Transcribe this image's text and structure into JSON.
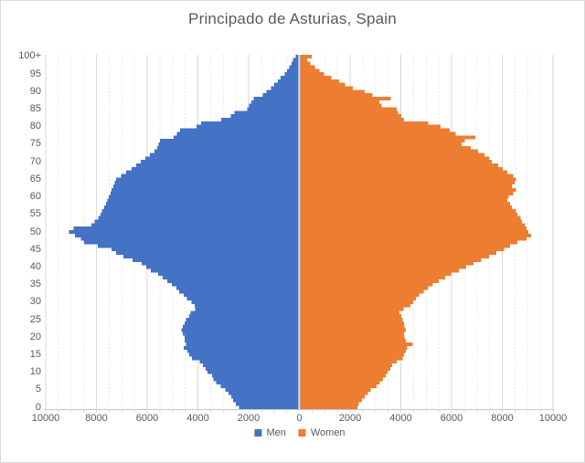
{
  "title": "Principado de Asturias, Spain",
  "legend": {
    "men": "Men",
    "women": "Women"
  },
  "colors": {
    "men": "#4472C4",
    "women": "#ED7D31",
    "grid_major": "#D9D9D9",
    "grid_minor": "#E9E9E9",
    "axis_line": "#C6C6C6",
    "center_axis": "#BFBFBF",
    "tick_mark": "#D9D9D9",
    "text": "#595959",
    "background": "#FFFFFF"
  },
  "axes": {
    "x_tick_labels": [
      "10000",
      "8000",
      "6000",
      "4000",
      "2000",
      "0",
      "2000",
      "4000",
      "6000",
      "8000",
      "10000"
    ],
    "y_tick_labels": [
      "100+",
      "95",
      "90",
      "85",
      "80",
      "75",
      "70",
      "65",
      "60",
      "55",
      "50",
      "45",
      "40",
      "35",
      "30",
      "25",
      "20",
      "15",
      "10",
      "5",
      "0"
    ]
  },
  "chart_data": {
    "type": "bar",
    "subtype": "population_pyramid",
    "orientation": "horizontal",
    "title": "Principado de Asturias, Spain",
    "legend_position": "bottom",
    "gridlines": "vertical, minor every 500 (dashed), major every 2000 (solid)",
    "x_axis": {
      "min": -10000,
      "max": 10000,
      "major_step": 2000,
      "minor_step": 500,
      "labels_absolute_values": true
    },
    "y_axis": {
      "unit": "age in single years",
      "min_label": "0",
      "max_label": "100+",
      "label_step": 5
    },
    "categories": [
      "0",
      "1",
      "2",
      "3",
      "4",
      "5",
      "6",
      "7",
      "8",
      "9",
      "10",
      "11",
      "12",
      "13",
      "14",
      "15",
      "16",
      "17",
      "18",
      "19",
      "20",
      "21",
      "22",
      "23",
      "24",
      "25",
      "26",
      "27",
      "28",
      "29",
      "30",
      "31",
      "32",
      "33",
      "34",
      "35",
      "36",
      "37",
      "38",
      "39",
      "40",
      "41",
      "42",
      "43",
      "44",
      "45",
      "46",
      "47",
      "48",
      "49",
      "50",
      "51",
      "52",
      "53",
      "54",
      "55",
      "56",
      "57",
      "58",
      "59",
      "60",
      "61",
      "62",
      "63",
      "64",
      "65",
      "66",
      "67",
      "68",
      "69",
      "70",
      "71",
      "72",
      "73",
      "74",
      "75",
      "76",
      "77",
      "78",
      "79",
      "80",
      "81",
      "82",
      "83",
      "84",
      "85",
      "86",
      "87",
      "88",
      "89",
      "90",
      "91",
      "92",
      "93",
      "94",
      "95",
      "96",
      "97",
      "98",
      "99",
      "100+"
    ],
    "series": [
      {
        "name": "Men",
        "side": "left",
        "color": "#4472C4",
        "values": [
          2380,
          2500,
          2620,
          2680,
          2800,
          2920,
          3100,
          3280,
          3390,
          3450,
          3630,
          3690,
          3810,
          3930,
          4230,
          4350,
          4410,
          4550,
          4470,
          4530,
          4530,
          4590,
          4650,
          4590,
          4530,
          4470,
          4350,
          4290,
          4110,
          4130,
          4250,
          4430,
          4550,
          4730,
          4850,
          5030,
          5200,
          5380,
          5560,
          5860,
          6040,
          6220,
          6580,
          6930,
          7230,
          7410,
          7950,
          8490,
          8610,
          8840,
          9080,
          8900,
          8190,
          8070,
          7920,
          7840,
          7780,
          7690,
          7630,
          7570,
          7510,
          7440,
          7400,
          7340,
          7280,
          7220,
          7030,
          6820,
          6620,
          6440,
          6260,
          6080,
          5900,
          5720,
          5610,
          5550,
          5490,
          4950,
          4830,
          4710,
          4050,
          3870,
          3090,
          2700,
          2550,
          2060,
          1980,
          1900,
          1800,
          1440,
          1300,
          1110,
          990,
          850,
          730,
          580,
          490,
          390,
          310,
          250,
          150
        ]
      },
      {
        "name": "Women",
        "side": "right",
        "color": "#ED7D31",
        "values": [
          2280,
          2340,
          2460,
          2580,
          2700,
          2810,
          3050,
          3170,
          3290,
          3410,
          3470,
          3590,
          3650,
          3830,
          4070,
          4130,
          4190,
          4250,
          4460,
          4190,
          4150,
          4130,
          4190,
          4150,
          4130,
          4070,
          4010,
          3950,
          4100,
          4370,
          4490,
          4600,
          4720,
          4900,
          5080,
          5260,
          5500,
          5740,
          5980,
          6280,
          6570,
          6870,
          7170,
          7470,
          7770,
          8070,
          8300,
          8600,
          8960,
          9140,
          9020,
          8960,
          8900,
          8780,
          8720,
          8600,
          8540,
          8370,
          8300,
          8190,
          8250,
          8430,
          8540,
          8370,
          8480,
          8540,
          8430,
          8190,
          8010,
          7830,
          7590,
          7470,
          7290,
          7050,
          6750,
          6400,
          6520,
          6930,
          6160,
          5920,
          5560,
          5080,
          4130,
          4010,
          3890,
          3830,
          3250,
          3150,
          3600,
          2880,
          2580,
          2100,
          1800,
          1560,
          1260,
          970,
          790,
          610,
          430,
          310,
          490
        ]
      }
    ]
  }
}
